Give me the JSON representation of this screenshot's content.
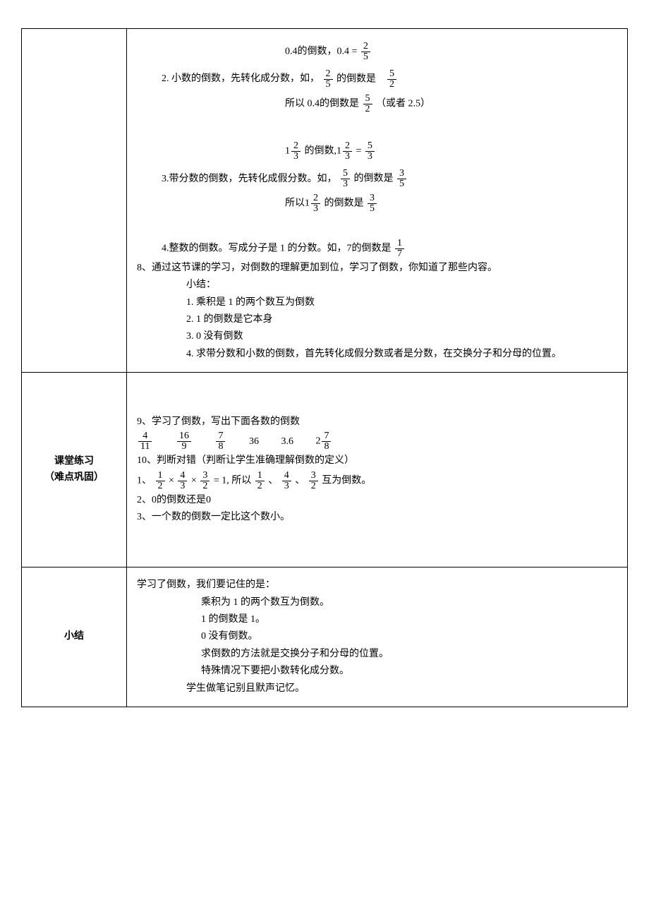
{
  "colors": {
    "text": "#000000",
    "border": "#000000",
    "background": "#ffffff",
    "watermark": "#e0e0e0"
  },
  "typography": {
    "body_fontsize_pt": 10.5,
    "label_bold": true,
    "font_family": "SimSun"
  },
  "row1": {
    "label": "",
    "decimal": {
      "intro": "2. 小数的倒数，先转化成分数，如，",
      "l1a": "0.4的倒数，0.4 = ",
      "l1_frac_n": "2",
      "l1_frac_d": "5",
      "l2_frac1_n": "2",
      "l2_frac1_d": "5",
      "l2_mid": "的倒数是",
      "l2_frac2_n": "5",
      "l2_frac2_d": "2",
      "l3a": "所以 0.4的倒数是  ",
      "l3_frac_n": "5",
      "l3_frac_d": "2",
      "l3b": "（或者  2.5）"
    },
    "mixed": {
      "intro": "3.带分数的倒数，先转化成假分数。如，",
      "l1a": "1",
      "l1_frac1_n": "2",
      "l1_frac1_d": "3",
      "l1b": "的倒数,1",
      "l1_frac2_n": "2",
      "l1_frac2_d": "3",
      "l1c": " = ",
      "l1_frac3_n": "5",
      "l1_frac3_d": "3",
      "l2_frac1_n": "5",
      "l2_frac1_d": "3",
      "l2_mid": "的倒数是",
      "l2_frac2_n": "3",
      "l2_frac2_d": "5",
      "l3a": "所以1",
      "l3_frac1_n": "2",
      "l3_frac1_d": "3",
      "l3b": "的倒数是",
      "l3_frac2_n": "3",
      "l3_frac2_d": "5"
    },
    "integer": {
      "intro": "4.整数的倒数。写成分子是 1 的分数。如，7的倒数是",
      "frac_n": "1",
      "frac_d": "7"
    },
    "q8": "8、通过这节课的学习，对倒数的理解更加到位，学习了倒数，你知道了那些内容。",
    "summary_label": "小结：",
    "summary": [
      "1.      乘积是 1 的两个数互为倒数",
      "2.      1 的倒数是它本身",
      "3.      0 没有倒数",
      "4.      求带分数和小数的倒数，首先转化成假分数或者是分数，在交换分子和分母的位置。"
    ]
  },
  "row2": {
    "label_l1": "课堂练习",
    "label_l2": "（难点巩固）",
    "q9": "9、学习了倒数，写出下面各数的倒数",
    "values": {
      "a_n": "4",
      "a_d": "11",
      "b_n": "16",
      "b_d": "9",
      "c_n": "7",
      "c_d": "8",
      "d": "36",
      "e": "3.6",
      "f_int": "2",
      "f_n": "7",
      "f_d": "8"
    },
    "q10": "10、判断对错（判断让学生准确理解倒数的定义）",
    "j1_pre": "1、",
    "j1_f1_n": "1",
    "j1_f1_d": "2",
    "j1_x1": "×",
    "j1_f2_n": "4",
    "j1_f2_d": "3",
    "j1_x2": "×",
    "j1_f3_n": "3",
    "j1_f3_d": "2",
    "j1_eq": " = 1,  所以",
    "j1_f4_n": "1",
    "j1_f4_d": "2",
    "j1_c1": "、",
    "j1_f5_n": "4",
    "j1_f5_d": "3",
    "j1_c2": "、",
    "j1_f6_n": "3",
    "j1_f6_d": "2",
    "j1_end": "互为倒数。",
    "j2": "2、0的倒数还是0",
    "j3": "3、一个数的倒数一定比这个数小。"
  },
  "row3": {
    "label": "小结",
    "intro": "学习了倒数，我们要记住的是：",
    "points": [
      "乘积为 1 的两个数互为倒数。",
      "1 的倒数是 1。",
      "0 没有倒数。",
      "求倒数的方法就是交换分子和分母的位置。",
      "特殊情况下要把小数转化成分数。"
    ],
    "tail": "学生做笔记别且默声记忆。"
  }
}
